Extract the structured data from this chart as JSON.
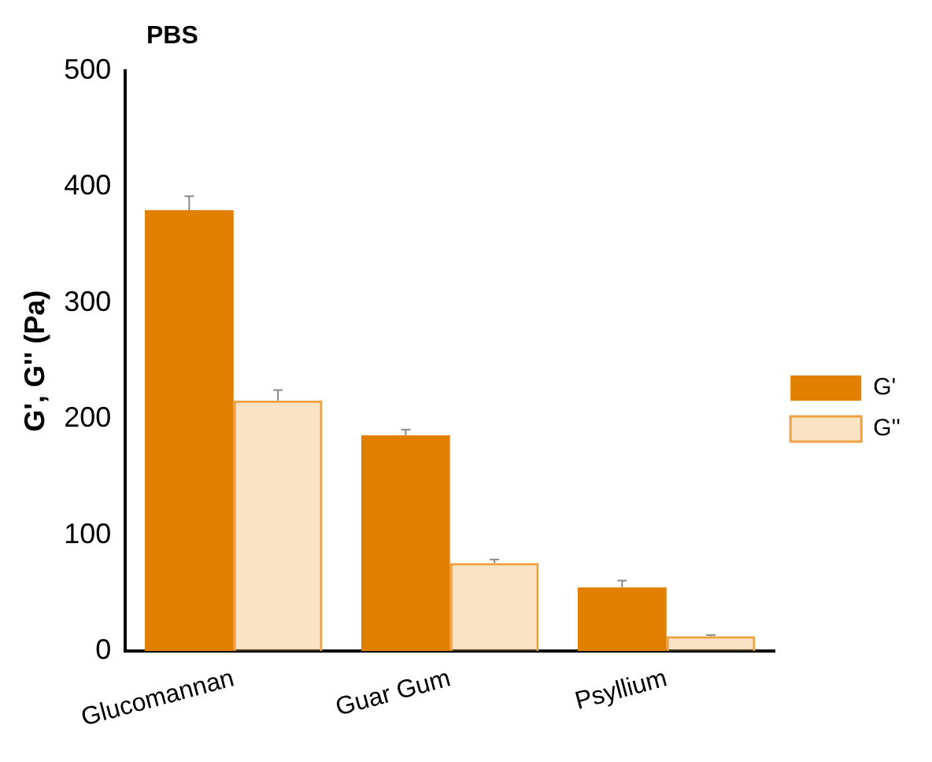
{
  "chart_data": {
    "type": "bar",
    "title": "PBS",
    "ylabel": "G', G'' (Pa)",
    "categories": [
      "Glucomannan",
      "Guar Gum",
      "Psyllium"
    ],
    "series": [
      {
        "name": "G'",
        "color": "#e07f00",
        "values": [
          380,
          186,
          55
        ],
        "errors": [
          [
            380,
            392
          ],
          [
            186,
            191
          ],
          [
            55,
            61
          ]
        ]
      },
      {
        "name": "G''",
        "color": "#f0a040",
        "values": [
          216,
          76,
          13
        ],
        "errors": [
          [
            216,
            225
          ],
          [
            76,
            79
          ],
          [
            13,
            14
          ]
        ]
      }
    ],
    "ylim": [
      0,
      500
    ],
    "yticks": [
      0,
      100,
      200,
      300,
      400,
      500
    ],
    "grid": false,
    "legend": "right"
  }
}
